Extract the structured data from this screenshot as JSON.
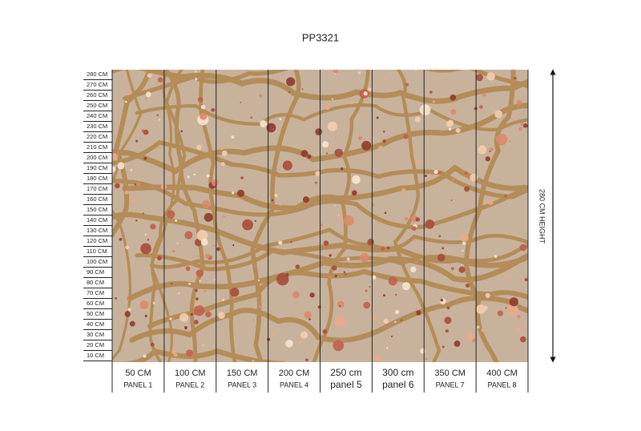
{
  "title": "PP3321",
  "ruler": [
    "280 CM",
    "270 CM",
    "260 CM",
    "250 CM",
    "240 CM",
    "230 CM",
    "220 CM",
    "210 CM",
    "200 CM",
    "190 CM",
    "180 CM",
    "170 CM",
    "160 CM",
    "150 CM",
    "140 CM",
    "130 CM",
    "120 CM",
    "110 CM",
    "100 CM",
    "90 CM",
    "80 CM",
    "70 CM",
    "60 CM",
    "50 CM",
    "40 CM",
    "30 CM",
    "20 CM",
    "10 CM"
  ],
  "height_label": "280 CM HEIGHT",
  "panels": [
    {
      "width": "50 CM",
      "label": "PANEL 1"
    },
    {
      "width": "100 CM",
      "label": "PANEL 2"
    },
    {
      "width": "150 CM",
      "label": "PANEL 3"
    },
    {
      "width": "200 CM",
      "label": "PANEL 4"
    },
    {
      "width": "250 cm",
      "label": "panel 5"
    },
    {
      "width": "300 cm",
      "label": "panel 6"
    },
    {
      "width": "350 CM",
      "label": "PANEL 7"
    },
    {
      "width": "400 CM",
      "label": "PANEL 8"
    }
  ]
}
